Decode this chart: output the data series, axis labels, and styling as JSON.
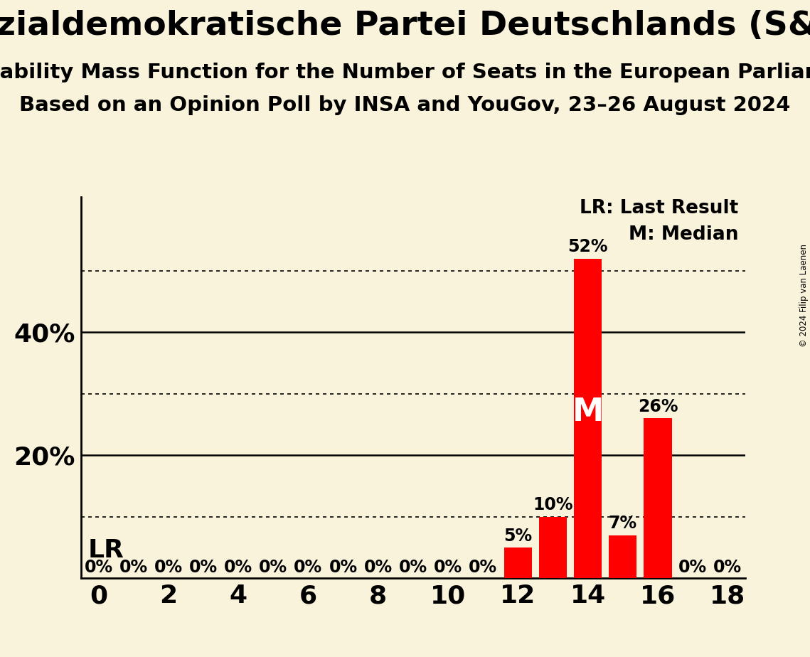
{
  "title": "Sozialdemokratische Partei Deutschlands (S&D)",
  "subtitle1": "Probability Mass Function for the Number of Seats in the European Parliament",
  "subtitle2": "Based on an Opinion Poll by INSA and YouGov, 23–26 August 2024",
  "copyright": "© 2024 Filip van Laenen",
  "seats": [
    0,
    1,
    2,
    3,
    4,
    5,
    6,
    7,
    8,
    9,
    10,
    11,
    12,
    13,
    14,
    15,
    16,
    17,
    18
  ],
  "probabilities": [
    0,
    0,
    0,
    0,
    0,
    0,
    0,
    0,
    0,
    0,
    0,
    0,
    5,
    10,
    52,
    7,
    26,
    0,
    0
  ],
  "bar_color": "#ff0000",
  "background_color": "#faf3dc",
  "median_seat": 14,
  "lr_seat": 14,
  "solid_gridlines": [
    20,
    40
  ],
  "dotted_gridlines": [
    10,
    30,
    50
  ],
  "xlim": [
    -0.5,
    18.5
  ],
  "ylim": [
    0,
    62
  ],
  "tick_fontsize": 26,
  "title_fontsize": 34,
  "subtitle1_fontsize": 21,
  "subtitle2_fontsize": 21,
  "bar_label_fontsize": 17,
  "legend_fontsize": 19,
  "lr_fontsize": 26,
  "median_label_fontsize": 32,
  "text_color": "#000000"
}
